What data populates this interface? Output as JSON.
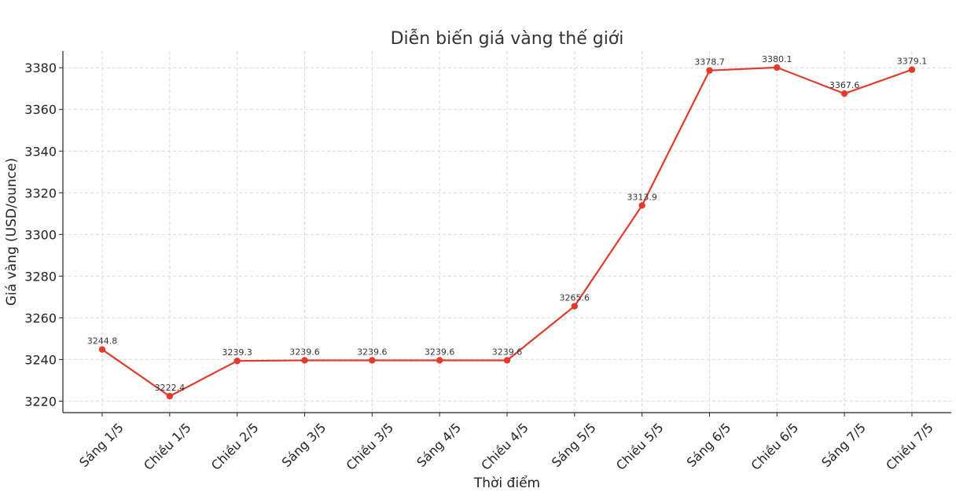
{
  "chart_data": {
    "type": "line",
    "title": "Diễn biến giá vàng thế giới",
    "xlabel": "Thời điểm",
    "ylabel": "Giá vàng (USD/ounce)",
    "categories": [
      "Sáng 1/5",
      "Chiều 1/5",
      "Chiều 2/5",
      "Sáng 3/5",
      "Chiều 3/5",
      "Sáng 4/5",
      "Chiều 4/5",
      "Sáng 5/5",
      "Chiều 5/5",
      "Sáng 6/5",
      "Chiều 6/5",
      "Sáng 7/5",
      "Chiều 7/5"
    ],
    "series": [
      {
        "values": [
          3244.8,
          3222.4,
          3239.3,
          3239.6,
          3239.6,
          3239.6,
          3239.6,
          3265.6,
          3313.9,
          3378.7,
          3380.1,
          3367.6,
          3379.1
        ],
        "labels": [
          "3244.8",
          "3222.4",
          "3239.3",
          "3239.6",
          "3239.6",
          "3239.6",
          "3239.6",
          "3265.6",
          "3313.9",
          "3378.7",
          "3380.1",
          "3367.6",
          "3379.1"
        ],
        "color": "#e03b2c"
      }
    ],
    "yticks": [
      3220,
      3240,
      3260,
      3280,
      3300,
      3320,
      3340,
      3360,
      3380
    ],
    "ylim": [
      3214.5,
      3388
    ],
    "grid": true,
    "legend": "none"
  }
}
